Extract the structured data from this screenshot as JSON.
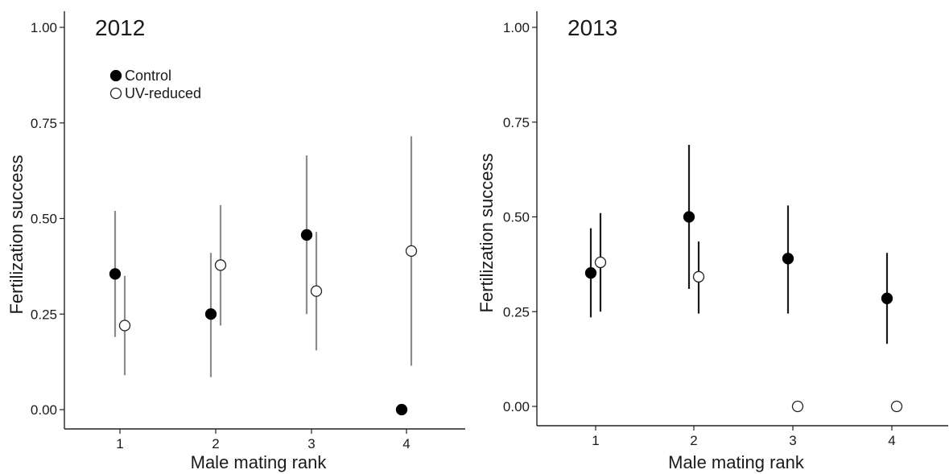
{
  "chart_data": [
    {
      "type": "scatter",
      "title": "2012",
      "xlabel": "Male mating rank",
      "ylabel": "Fertilization success",
      "categories": [
        "1",
        "2",
        "3",
        "4"
      ],
      "yticks": [
        "0.00",
        "0.25",
        "0.50",
        "0.75",
        "1.00"
      ],
      "ylim": [
        0,
        1
      ],
      "grid": false,
      "legend": {
        "placement": "top-left",
        "entries": [
          {
            "label": "Control",
            "marker": "filled-circle"
          },
          {
            "label": "UV-reduced",
            "marker": "open-circle"
          }
        ]
      },
      "errorbar_color": "#8c8c8c",
      "series": [
        {
          "name": "Control",
          "marker": "filled",
          "points": [
            {
              "rank": 1,
              "y": 0.355,
              "lower": 0.19,
              "upper": 0.52
            },
            {
              "rank": 2,
              "y": 0.25,
              "lower": 0.085,
              "upper": 0.41
            },
            {
              "rank": 3,
              "y": 0.457,
              "lower": 0.25,
              "upper": 0.665
            },
            {
              "rank": 4,
              "y": 0.0,
              "lower": null,
              "upper": null
            }
          ]
        },
        {
          "name": "UV-reduced",
          "marker": "open",
          "points": [
            {
              "rank": 1,
              "y": 0.22,
              "lower": 0.09,
              "upper": 0.35
            },
            {
              "rank": 2,
              "y": 0.378,
              "lower": 0.22,
              "upper": 0.535
            },
            {
              "rank": 3,
              "y": 0.31,
              "lower": 0.155,
              "upper": 0.465
            },
            {
              "rank": 4,
              "y": 0.415,
              "lower": 0.115,
              "upper": 0.715
            }
          ]
        }
      ]
    },
    {
      "type": "scatter",
      "title": "2013",
      "xlabel": "Male mating rank",
      "ylabel": "Fertilization success",
      "categories": [
        "1",
        "2",
        "3",
        "4"
      ],
      "yticks": [
        "0.00",
        "0.25",
        "0.50",
        "0.75",
        "1.00"
      ],
      "ylim": [
        0,
        1
      ],
      "grid": false,
      "errorbar_color": "#1a1a1a",
      "series": [
        {
          "name": "Control",
          "marker": "filled",
          "points": [
            {
              "rank": 1,
              "y": 0.352,
              "lower": 0.235,
              "upper": 0.47
            },
            {
              "rank": 2,
              "y": 0.5,
              "lower": 0.31,
              "upper": 0.69
            },
            {
              "rank": 3,
              "y": 0.39,
              "lower": 0.245,
              "upper": 0.53
            },
            {
              "rank": 4,
              "y": 0.285,
              "lower": 0.165,
              "upper": 0.405
            }
          ]
        },
        {
          "name": "UV-reduced",
          "marker": "open",
          "points": [
            {
              "rank": 1,
              "y": 0.38,
              "lower": 0.25,
              "upper": 0.51
            },
            {
              "rank": 2,
              "y": 0.342,
              "lower": 0.245,
              "upper": 0.435
            },
            {
              "rank": 3,
              "y": 0.0,
              "lower": null,
              "upper": null
            },
            {
              "rank": 4,
              "y": 0.0,
              "lower": null,
              "upper": null
            }
          ]
        }
      ]
    }
  ]
}
